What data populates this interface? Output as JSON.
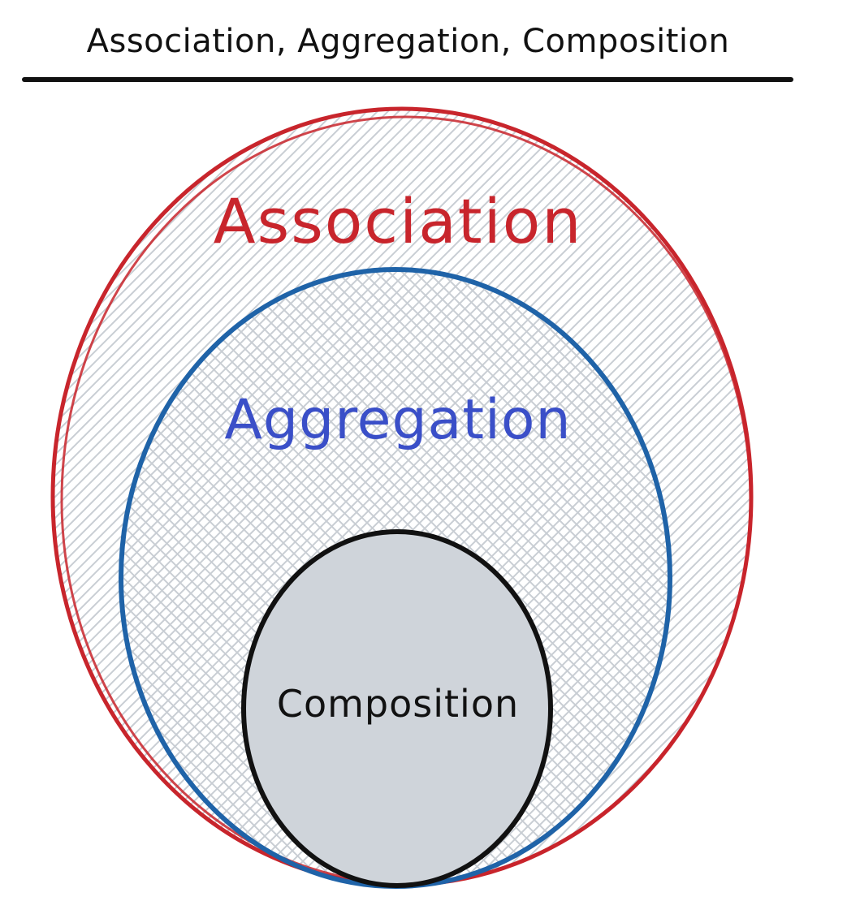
{
  "title": "Association, Aggregation, Composition",
  "sets": [
    {
      "id": "association",
      "label": "Association",
      "color": "#c8252c"
    },
    {
      "id": "aggregation",
      "label": "Aggregation",
      "color": "#1f63a8",
      "text_color": "#3a4fc8"
    },
    {
      "id": "composition",
      "label": "Composition",
      "color": "#111111",
      "fill": "#cfd4da"
    }
  ],
  "hatch_color": "#c9ced4"
}
